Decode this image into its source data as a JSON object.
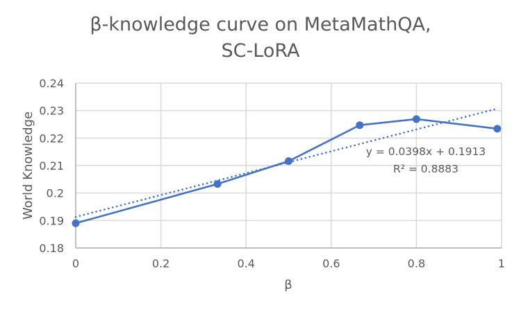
{
  "chart_data": {
    "type": "line",
    "title": "β-knowledge curve on MetaMathQA, SC-LoRA",
    "title_lines": [
      "β-knowledge curve on MetaMathQA,",
      "SC-LoRA"
    ],
    "xlabel": "β",
    "ylabel": "World Knowledge",
    "xlim": [
      0,
      1
    ],
    "ylim": [
      0.18,
      0.24
    ],
    "x_ticks": [
      "0",
      "0.2",
      "0.4",
      "0.6",
      "0.8",
      "1"
    ],
    "y_ticks": [
      "0.18",
      "0.19",
      "0.2",
      "0.21",
      "0.22",
      "0.23",
      "0.24"
    ],
    "grid": true,
    "legend": "none",
    "series": [
      {
        "name": "World Knowledge",
        "color": "#4472C4",
        "marker": "circle",
        "x": [
          0,
          0.333,
          0.5,
          0.667,
          0.8,
          0.99
        ],
        "values": [
          0.189,
          0.2033,
          0.2116,
          0.2247,
          0.2269,
          0.2234
        ]
      }
    ],
    "trendline": {
      "type": "linear",
      "style": "dotted",
      "color": "#4472C4",
      "equation": "y = 0.0398x + 0.1913",
      "r_squared": "R² = 0.8883",
      "slope": 0.0398,
      "intercept": 0.1913
    }
  }
}
